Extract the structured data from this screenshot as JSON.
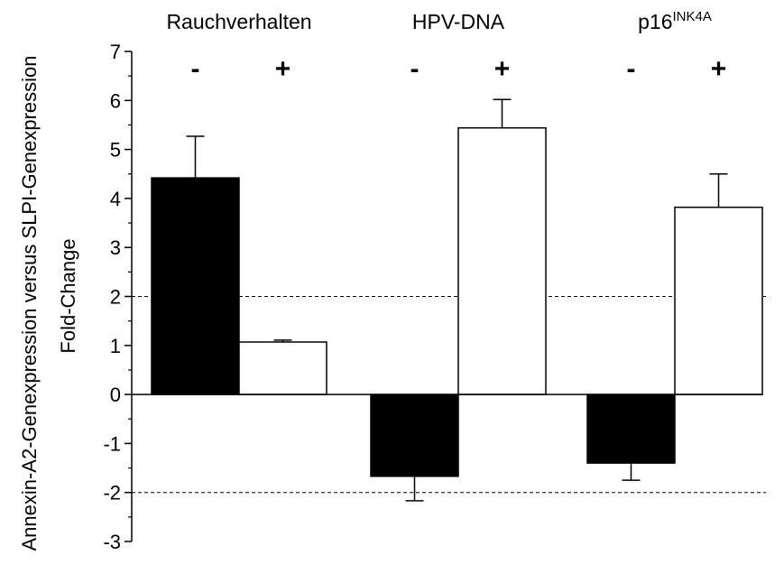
{
  "chart_data": {
    "type": "bar",
    "ylabel_outer": "Annexin-A2-Genexpression versus SLPI-Genexpression",
    "ylabel": "Fold-Change",
    "ylim": [
      -3,
      7
    ],
    "yticks": [
      7,
      6,
      5,
      4,
      3,
      2,
      1,
      0,
      -1,
      -2,
      -3
    ],
    "reference_lines": [
      2,
      -2
    ],
    "reference_line_style": "dashed",
    "groups": [
      {
        "label": "Rauchverhalten",
        "label_sup": "",
        "bars": [
          {
            "sign": "-",
            "value": 4.42,
            "error": 0.85,
            "fill": "#000000"
          },
          {
            "sign": "+",
            "value": 1.07,
            "error": 0.04,
            "fill": "#ffffff"
          }
        ]
      },
      {
        "label": "HPV-DNA",
        "label_sup": "",
        "bars": [
          {
            "sign": "-",
            "value": -1.67,
            "error": 0.5,
            "fill": "#000000"
          },
          {
            "sign": "+",
            "value": 5.44,
            "error": 0.58,
            "fill": "#ffffff"
          }
        ]
      },
      {
        "label": "p16",
        "label_sup": "INK4A",
        "bars": [
          {
            "sign": "-",
            "value": -1.4,
            "error": 0.35,
            "fill": "#000000"
          },
          {
            "sign": "+",
            "value": 3.82,
            "error": 0.68,
            "fill": "#ffffff"
          }
        ]
      }
    ],
    "grid": false,
    "colors": {
      "negative_bar": "#000000",
      "positive_bar": "#ffffff",
      "outline": "#000000"
    }
  }
}
